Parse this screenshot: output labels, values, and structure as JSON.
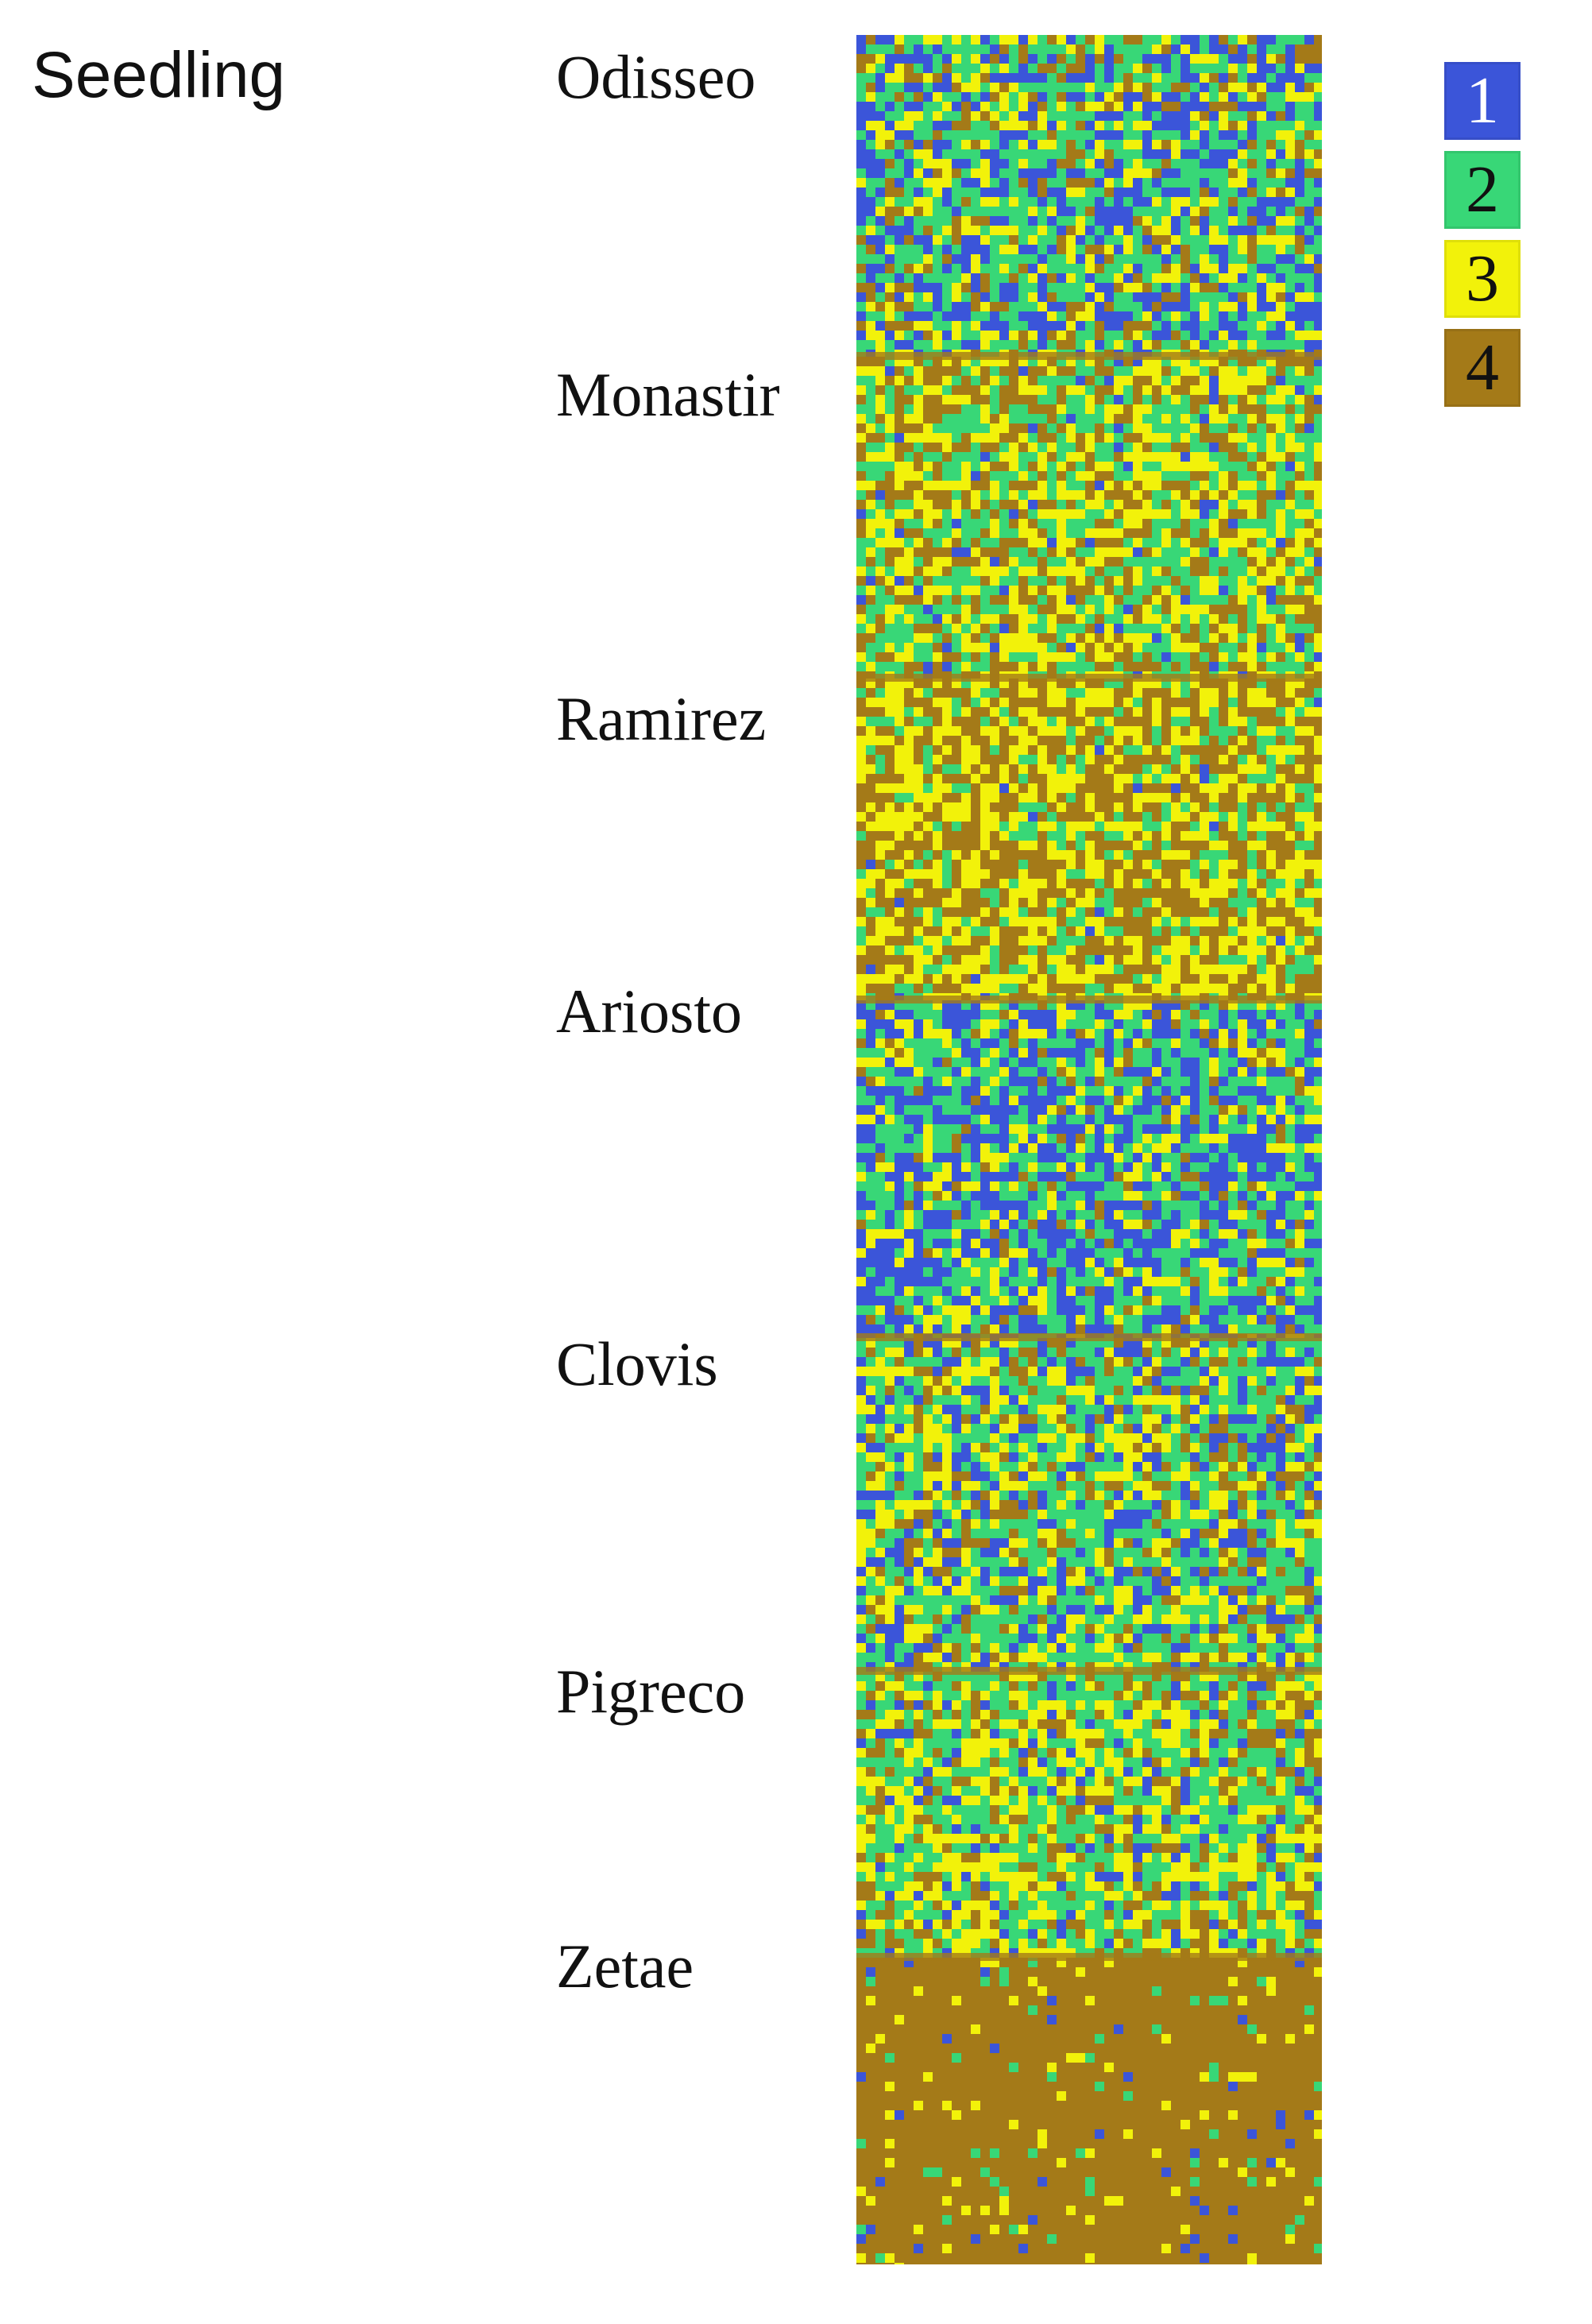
{
  "stage": "Seedling",
  "varieties": [
    {
      "name": "Odisseo",
      "class_mix": [
        0.3,
        0.38,
        0.18,
        0.14
      ]
    },
    {
      "name": "Monastir",
      "class_mix": [
        0.04,
        0.34,
        0.32,
        0.3
      ]
    },
    {
      "name": "Ramirez",
      "class_mix": [
        0.01,
        0.18,
        0.38,
        0.43
      ]
    },
    {
      "name": "Ariosto",
      "class_mix": [
        0.38,
        0.36,
        0.18,
        0.08
      ]
    },
    {
      "name": "Clovis",
      "class_mix": [
        0.2,
        0.38,
        0.26,
        0.16
      ]
    },
    {
      "name": "Pigreco",
      "class_mix": [
        0.12,
        0.36,
        0.34,
        0.18
      ]
    },
    {
      "name": "Zetae",
      "class_mix": [
        0.02,
        0.03,
        0.05,
        0.9
      ]
    }
  ],
  "legend": [
    {
      "label": "1",
      "color": "#3b55d9",
      "text_color": "#ffffff"
    },
    {
      "label": "2",
      "color": "#38d777",
      "text_color": "#111111"
    },
    {
      "label": "3",
      "color": "#f2f20a",
      "text_color": "#111111"
    },
    {
      "label": "4",
      "color": "#a47a18",
      "text_color": "#111111"
    }
  ]
}
